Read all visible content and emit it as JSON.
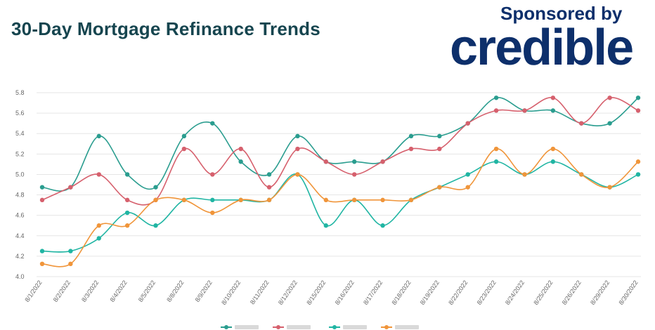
{
  "header": {
    "title": "30-Day Mortgage Refinance Trends",
    "sponsor_text": "Sponsored by",
    "brand": "credible"
  },
  "chart_data": {
    "type": "line",
    "title": "30-Day Mortgage Refinance Trends",
    "xlabel": "",
    "ylabel": "",
    "ylim": [
      4.0,
      5.8
    ],
    "yticks": [
      "4.0",
      "4.2",
      "4.4",
      "4.6",
      "4.8",
      "5.0",
      "5.2",
      "5.4",
      "5.6",
      "5.8"
    ],
    "grid": true,
    "categories": [
      "8/1/2022",
      "8/2/2022",
      "8/3/2022",
      "8/4/2022",
      "8/5/2022",
      "8/8/2022",
      "8/9/2022",
      "8/10/2022",
      "8/11/2022",
      "8/12/2022",
      "8/15/2022",
      "8/16/2022",
      "8/17/2022",
      "8/18/2022",
      "8/19/2022",
      "8/22/2022",
      "8/23/2022",
      "8/24/2022",
      "8/25/2022",
      "8/26/2022",
      "8/29/2022",
      "8/30/2022"
    ],
    "series": [
      {
        "color": "#2a9d8f",
        "values": [
          4.875,
          4.875,
          5.375,
          5.0,
          4.875,
          5.375,
          5.5,
          5.125,
          5.0,
          5.375,
          5.125,
          5.125,
          5.125,
          5.375,
          5.375,
          5.5,
          5.75,
          5.625,
          5.625,
          5.5,
          5.5,
          5.75
        ]
      },
      {
        "color": "#d6606d",
        "values": [
          4.75,
          4.875,
          5.0,
          4.75,
          4.75,
          5.25,
          5.0,
          5.25,
          4.875,
          5.25,
          5.125,
          5.0,
          5.125,
          5.25,
          5.25,
          5.5,
          5.625,
          5.625,
          5.75,
          5.5,
          5.75,
          5.625
        ]
      },
      {
        "color": "#20b5a3",
        "values": [
          4.25,
          4.25,
          4.375,
          4.625,
          4.5,
          4.75,
          4.75,
          4.75,
          4.75,
          5.0,
          4.5,
          4.75,
          4.5,
          4.75,
          4.875,
          5.0,
          5.125,
          5.0,
          5.125,
          5.0,
          4.875,
          5.0
        ]
      },
      {
        "color": "#f0953a",
        "values": [
          4.125,
          4.125,
          4.5,
          4.5,
          4.75,
          4.75,
          4.625,
          4.75,
          4.75,
          5.0,
          4.75,
          4.75,
          4.75,
          4.75,
          4.875,
          4.875,
          5.25,
          5.0,
          5.25,
          5.0,
          4.875,
          5.125
        ]
      }
    ]
  }
}
